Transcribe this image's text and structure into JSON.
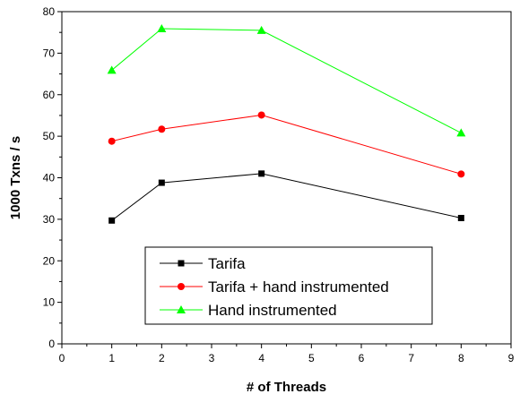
{
  "chart_data": {
    "type": "line",
    "title": "",
    "xlabel": "# of Threads",
    "ylabel": "1000 Txns / s",
    "xlim": [
      0,
      9
    ],
    "ylim": [
      0,
      80
    ],
    "x_ticks": [
      0,
      1,
      2,
      3,
      4,
      5,
      6,
      7,
      8,
      9
    ],
    "y_ticks": [
      0,
      10,
      20,
      30,
      40,
      50,
      60,
      70,
      80
    ],
    "grid": false,
    "legend_position": "bottom-center",
    "x": [
      1,
      2,
      4,
      8
    ],
    "series": [
      {
        "name": "Tarifa",
        "values": [
          29.7,
          38.8,
          41.0,
          30.3
        ],
        "color": "#000000",
        "marker": "square"
      },
      {
        "name": "Tarifa + hand instrumented",
        "values": [
          48.8,
          51.7,
          55.1,
          40.9
        ],
        "color": "#ff0000",
        "marker": "circle"
      },
      {
        "name": "Hand instrumented",
        "values": [
          65.9,
          75.9,
          75.5,
          50.8
        ],
        "color": "#00ff00",
        "marker": "triangle"
      }
    ]
  }
}
